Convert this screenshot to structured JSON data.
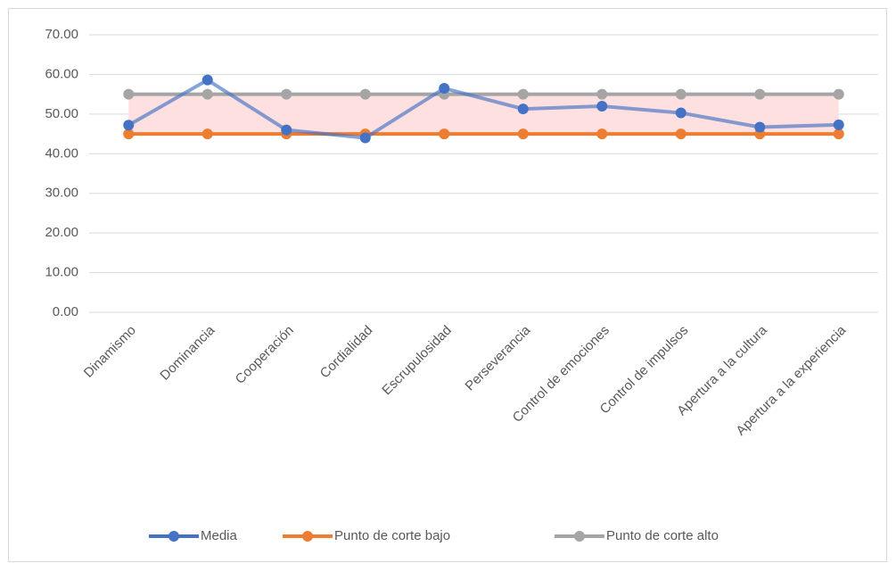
{
  "chart_data": {
    "type": "line",
    "categories": [
      "Dinamismo",
      "Dominancia",
      "Cooperación",
      "Cordialidad",
      "Escrupulosidad",
      "Perseverancia",
      "Control de emociones",
      "Control de impulsos",
      "Apertura a la cultura",
      "Apertura a la experiencia"
    ],
    "series": [
      {
        "name": "Media",
        "color": "#4472c4",
        "values": [
          47.2,
          58.6,
          46.0,
          44.0,
          56.5,
          51.3,
          52.0,
          50.3,
          46.7,
          47.3
        ]
      },
      {
        "name": "Punto de corte bajo",
        "color": "#ed7d31",
        "values": [
          45,
          45,
          45,
          45,
          45,
          45,
          45,
          45,
          45,
          45
        ]
      },
      {
        "name": "Punto de corte alto",
        "color": "#a5a5a5",
        "values": [
          55,
          55,
          55,
          55,
          55,
          55,
          55,
          55,
          55,
          55
        ]
      }
    ],
    "ylim": [
      0,
      70
    ],
    "yticks": [
      {
        "value": 0,
        "label": "0.00"
      },
      {
        "value": 10,
        "label": "10.00"
      },
      {
        "value": 20,
        "label": "20.00"
      },
      {
        "value": 30,
        "label": "30.00"
      },
      {
        "value": 40,
        "label": "40.00"
      },
      {
        "value": 50,
        "label": "50.00"
      },
      {
        "value": 60,
        "label": "60.00"
      },
      {
        "value": 70,
        "label": "70.00"
      }
    ],
    "grid": true,
    "legend": "bottom"
  }
}
